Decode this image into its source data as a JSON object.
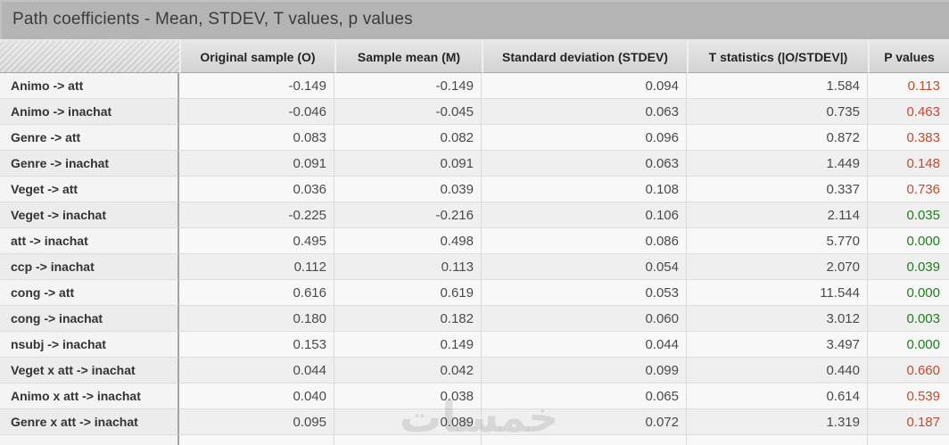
{
  "window": {
    "title": "Path coefficients - Mean, STDEV, T values, p values"
  },
  "table": {
    "columns": [
      "",
      "Original sample (O)",
      "Sample mean (M)",
      "Standard deviation (STDEV)",
      "T statistics (|O/STDEV|)",
      "P values"
    ],
    "colors": {
      "red": "#c4492d",
      "green": "#1e7d1e"
    },
    "rows": [
      {
        "label": "Animo -> att",
        "original_sample": "-0.149",
        "sample_mean": "-0.149",
        "stdev": "0.094",
        "t_statistic": "1.584",
        "p_value": "0.113",
        "p_color": "red"
      },
      {
        "label": "Animo -> inachat",
        "original_sample": "-0.046",
        "sample_mean": "-0.045",
        "stdev": "0.063",
        "t_statistic": "0.735",
        "p_value": "0.463",
        "p_color": "red"
      },
      {
        "label": "Genre -> att",
        "original_sample": "0.083",
        "sample_mean": "0.082",
        "stdev": "0.096",
        "t_statistic": "0.872",
        "p_value": "0.383",
        "p_color": "red"
      },
      {
        "label": "Genre -> inachat",
        "original_sample": "0.091",
        "sample_mean": "0.091",
        "stdev": "0.063",
        "t_statistic": "1.449",
        "p_value": "0.148",
        "p_color": "red"
      },
      {
        "label": "Veget -> att",
        "original_sample": "0.036",
        "sample_mean": "0.039",
        "stdev": "0.108",
        "t_statistic": "0.337",
        "p_value": "0.736",
        "p_color": "red"
      },
      {
        "label": "Veget -> inachat",
        "original_sample": "-0.225",
        "sample_mean": "-0.216",
        "stdev": "0.106",
        "t_statistic": "2.114",
        "p_value": "0.035",
        "p_color": "green"
      },
      {
        "label": "att -> inachat",
        "original_sample": "0.495",
        "sample_mean": "0.498",
        "stdev": "0.086",
        "t_statistic": "5.770",
        "p_value": "0.000",
        "p_color": "green"
      },
      {
        "label": "ccp -> inachat",
        "original_sample": "0.112",
        "sample_mean": "0.113",
        "stdev": "0.054",
        "t_statistic": "2.070",
        "p_value": "0.039",
        "p_color": "green"
      },
      {
        "label": "cong -> att",
        "original_sample": "0.616",
        "sample_mean": "0.619",
        "stdev": "0.053",
        "t_statistic": "11.544",
        "p_value": "0.000",
        "p_color": "green"
      },
      {
        "label": "cong -> inachat",
        "original_sample": "0.180",
        "sample_mean": "0.182",
        "stdev": "0.060",
        "t_statistic": "3.012",
        "p_value": "0.003",
        "p_color": "green"
      },
      {
        "label": "nsubj -> inachat",
        "original_sample": "0.153",
        "sample_mean": "0.149",
        "stdev": "0.044",
        "t_statistic": "3.497",
        "p_value": "0.000",
        "p_color": "green"
      },
      {
        "label": "Veget x att -> inachat",
        "original_sample": "0.044",
        "sample_mean": "0.042",
        "stdev": "0.099",
        "t_statistic": "0.440",
        "p_value": "0.660",
        "p_color": "red"
      },
      {
        "label": "Animo x att -> inachat",
        "original_sample": "0.040",
        "sample_mean": "0.038",
        "stdev": "0.065",
        "t_statistic": "0.614",
        "p_value": "0.539",
        "p_color": "red"
      },
      {
        "label": "Genre x att -> inachat",
        "original_sample": "0.095",
        "sample_mean": "0.089",
        "stdev": "0.072",
        "t_statistic": "1.319",
        "p_value": "0.187",
        "p_color": "red"
      }
    ]
  },
  "watermark": {
    "text": "خمسات"
  }
}
